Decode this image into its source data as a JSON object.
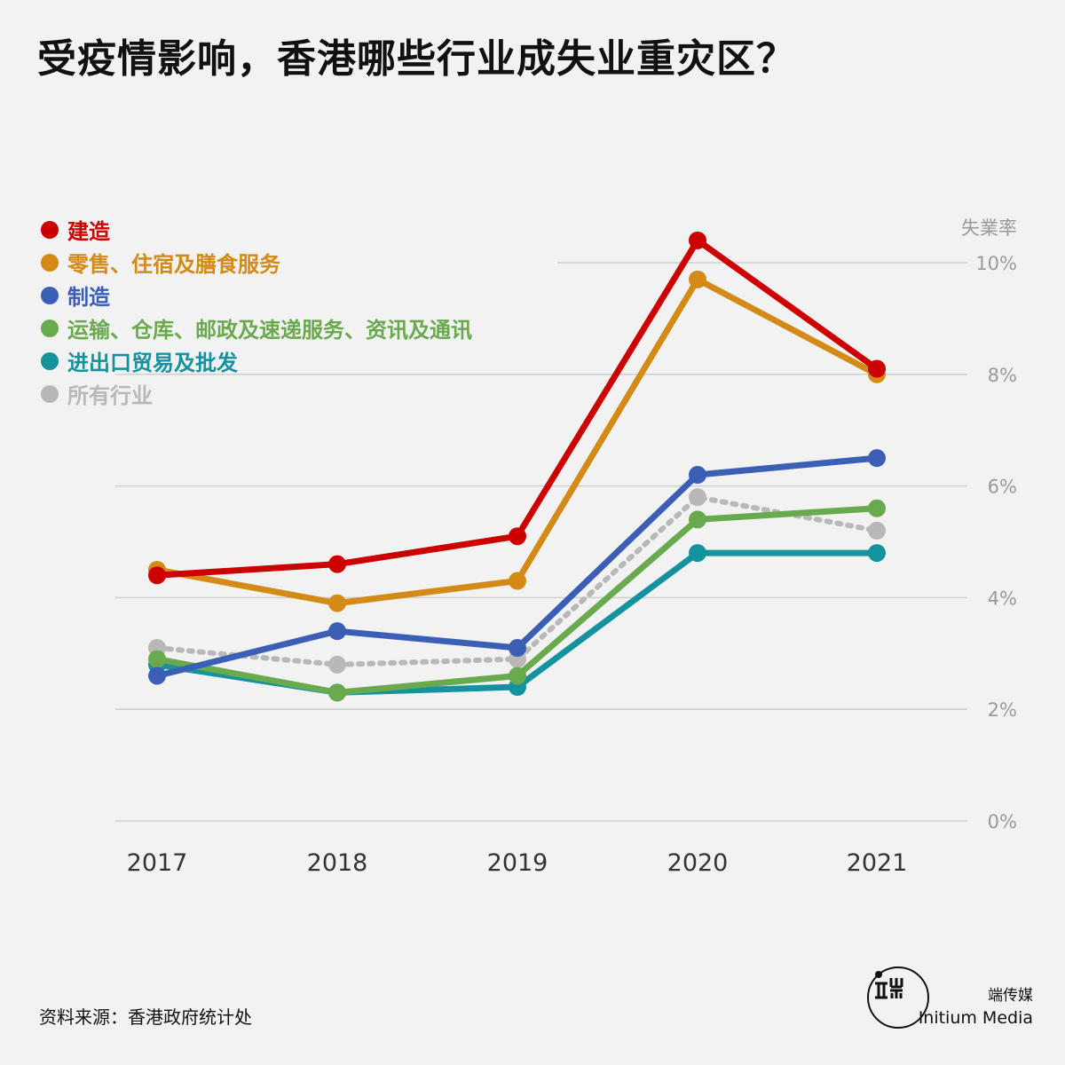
{
  "header": {
    "title": "受疫情影响，香港哪些行业成失业重灾区？"
  },
  "footer": {
    "source": "资料来源：香港政府统计处",
    "brand_cn": "端传媒",
    "brand_en": "Initium Media"
  },
  "chart_data": {
    "type": "line",
    "title": "受疫情影响，香港哪些行业成失业重灾区？",
    "ylabel": "失業率",
    "categories": [
      "2017",
      "2018",
      "2019",
      "2020",
      "2021"
    ],
    "ylim": [
      0,
      10
    ],
    "yticks": [
      0,
      2,
      4,
      6,
      8,
      10
    ],
    "ytick_labels": [
      "0%",
      "2%",
      "4%",
      "6%",
      "8%",
      "10%"
    ],
    "grid": true,
    "y_axis_side": "right",
    "legend_position": "top-left",
    "series": [
      {
        "name": "建造",
        "color": "#cc0000",
        "style": "solid",
        "values": [
          4.4,
          4.6,
          5.1,
          10.4,
          8.1
        ]
      },
      {
        "name": "零售、住宿及膳食服务",
        "color": "#d48a17",
        "style": "solid",
        "values": [
          4.5,
          3.9,
          4.3,
          9.7,
          8.0
        ]
      },
      {
        "name": "制造",
        "color": "#3a5fb5",
        "style": "solid",
        "values": [
          2.6,
          3.4,
          3.1,
          6.2,
          6.5
        ]
      },
      {
        "name": "运输、仓库、邮政及速递服务、资讯及通讯",
        "color": "#6aaa4f",
        "style": "solid",
        "values": [
          2.9,
          2.3,
          2.6,
          5.4,
          5.6
        ]
      },
      {
        "name": "进出口贸易及批发",
        "color": "#14939e",
        "style": "solid",
        "values": [
          2.8,
          2.3,
          2.4,
          4.8,
          4.8
        ]
      },
      {
        "name": "所有行业",
        "color": "#b8b8b8",
        "style": "dotted",
        "values": [
          3.1,
          2.8,
          2.9,
          5.8,
          5.2
        ]
      }
    ]
  }
}
